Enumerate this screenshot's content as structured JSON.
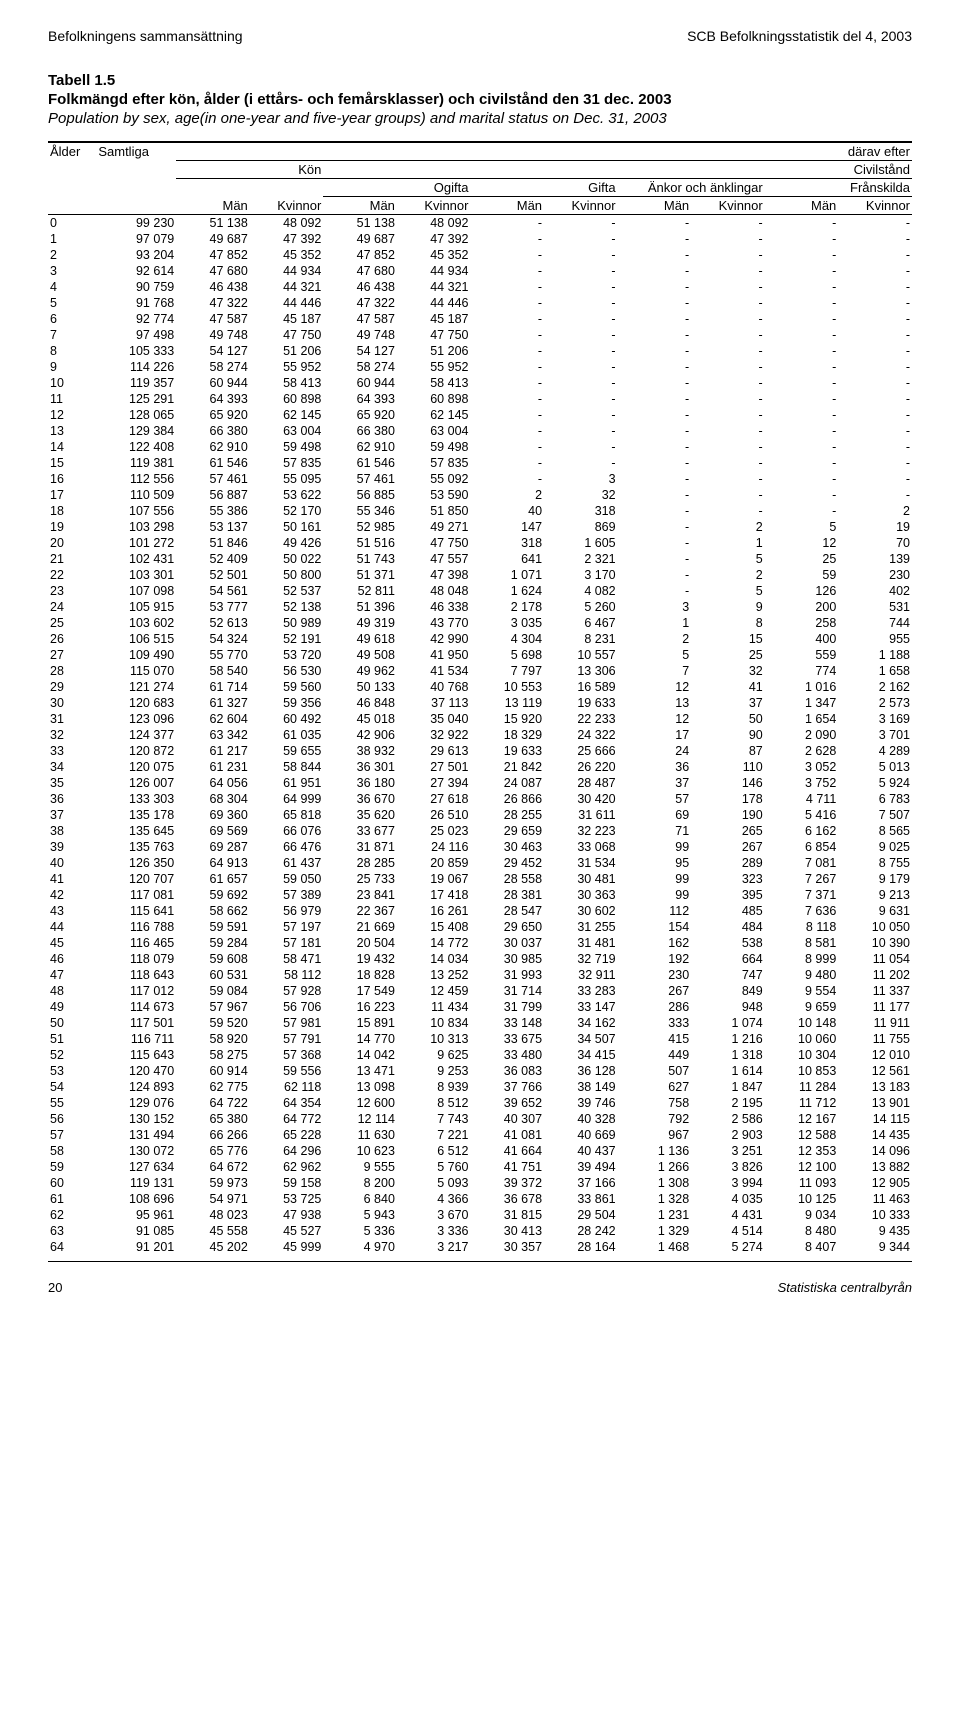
{
  "running": {
    "left": "Befolkningens sammansättning",
    "right": "SCB Befolkningsstatistik del 4, 2003"
  },
  "title": {
    "num": "Tabell 1.5",
    "sv": "Folkmängd efter kön, ålder (i ettårs- och femårsklasser) och civilstånd den 31 dec. 2003",
    "en": "Population by sex, age(in one-year and five-year groups) and marital status on Dec. 31, 2003"
  },
  "head": {
    "alder": "Ålder",
    "samtliga": "Samtliga",
    "darav": "därav efter",
    "kon": "Kön",
    "civil": "Civilstånd",
    "ogifta": "Ogifta",
    "gifta": "Gifta",
    "ankor": "Änkor och änklingar",
    "franskilda": "Frånskilda",
    "man": "Män",
    "kvinnor": "Kvinnor"
  },
  "footer": {
    "page": "20",
    "src": "Statistiska centralbyrån"
  },
  "rows": [
    [
      "0",
      "99 230",
      "51 138",
      "48 092",
      "51 138",
      "48 092",
      "-",
      "-",
      "-",
      "-",
      "-",
      "-"
    ],
    [
      "1",
      "97 079",
      "49 687",
      "47 392",
      "49 687",
      "47 392",
      "-",
      "-",
      "-",
      "-",
      "-",
      "-"
    ],
    [
      "2",
      "93 204",
      "47 852",
      "45 352",
      "47 852",
      "45 352",
      "-",
      "-",
      "-",
      "-",
      "-",
      "-"
    ],
    [
      "3",
      "92 614",
      "47 680",
      "44 934",
      "47 680",
      "44 934",
      "-",
      "-",
      "-",
      "-",
      "-",
      "-"
    ],
    [
      "4",
      "90 759",
      "46 438",
      "44 321",
      "46 438",
      "44 321",
      "-",
      "-",
      "-",
      "-",
      "-",
      "-"
    ],
    [
      "5",
      "91 768",
      "47 322",
      "44 446",
      "47 322",
      "44 446",
      "-",
      "-",
      "-",
      "-",
      "-",
      "-"
    ],
    [
      "6",
      "92 774",
      "47 587",
      "45 187",
      "47 587",
      "45 187",
      "-",
      "-",
      "-",
      "-",
      "-",
      "-"
    ],
    [
      "7",
      "97 498",
      "49 748",
      "47 750",
      "49 748",
      "47 750",
      "-",
      "-",
      "-",
      "-",
      "-",
      "-"
    ],
    [
      "8",
      "105 333",
      "54 127",
      "51 206",
      "54 127",
      "51 206",
      "-",
      "-",
      "-",
      "-",
      "-",
      "-"
    ],
    [
      "9",
      "114 226",
      "58 274",
      "55 952",
      "58 274",
      "55 952",
      "-",
      "-",
      "-",
      "-",
      "-",
      "-"
    ],
    [
      "10",
      "119 357",
      "60 944",
      "58 413",
      "60 944",
      "58 413",
      "-",
      "-",
      "-",
      "-",
      "-",
      "-"
    ],
    [
      "11",
      "125 291",
      "64 393",
      "60 898",
      "64 393",
      "60 898",
      "-",
      "-",
      "-",
      "-",
      "-",
      "-"
    ],
    [
      "12",
      "128 065",
      "65 920",
      "62 145",
      "65 920",
      "62 145",
      "-",
      "-",
      "-",
      "-",
      "-",
      "-"
    ],
    [
      "13",
      "129 384",
      "66 380",
      "63 004",
      "66 380",
      "63 004",
      "-",
      "-",
      "-",
      "-",
      "-",
      "-"
    ],
    [
      "14",
      "122 408",
      "62 910",
      "59 498",
      "62 910",
      "59 498",
      "-",
      "-",
      "-",
      "-",
      "-",
      "-"
    ],
    [
      "15",
      "119 381",
      "61 546",
      "57 835",
      "61 546",
      "57 835",
      "-",
      "-",
      "-",
      "-",
      "-",
      "-"
    ],
    [
      "16",
      "112 556",
      "57 461",
      "55 095",
      "57 461",
      "55 092",
      "-",
      "3",
      "-",
      "-",
      "-",
      "-"
    ],
    [
      "17",
      "110 509",
      "56 887",
      "53 622",
      "56 885",
      "53 590",
      "2",
      "32",
      "-",
      "-",
      "-",
      "-"
    ],
    [
      "18",
      "107 556",
      "55 386",
      "52 170",
      "55 346",
      "51 850",
      "40",
      "318",
      "-",
      "-",
      "-",
      "2"
    ],
    [
      "19",
      "103 298",
      "53 137",
      "50 161",
      "52 985",
      "49 271",
      "147",
      "869",
      "-",
      "2",
      "5",
      "19"
    ],
    [
      "20",
      "101 272",
      "51 846",
      "49 426",
      "51 516",
      "47 750",
      "318",
      "1 605",
      "-",
      "1",
      "12",
      "70"
    ],
    [
      "21",
      "102 431",
      "52 409",
      "50 022",
      "51 743",
      "47 557",
      "641",
      "2 321",
      "-",
      "5",
      "25",
      "139"
    ],
    [
      "22",
      "103 301",
      "52 501",
      "50 800",
      "51 371",
      "47 398",
      "1 071",
      "3 170",
      "-",
      "2",
      "59",
      "230"
    ],
    [
      "23",
      "107 098",
      "54 561",
      "52 537",
      "52 811",
      "48 048",
      "1 624",
      "4 082",
      "-",
      "5",
      "126",
      "402"
    ],
    [
      "24",
      "105 915",
      "53 777",
      "52 138",
      "51 396",
      "46 338",
      "2 178",
      "5 260",
      "3",
      "9",
      "200",
      "531"
    ],
    [
      "25",
      "103 602",
      "52 613",
      "50 989",
      "49 319",
      "43 770",
      "3 035",
      "6 467",
      "1",
      "8",
      "258",
      "744"
    ],
    [
      "26",
      "106 515",
      "54 324",
      "52 191",
      "49 618",
      "42 990",
      "4 304",
      "8 231",
      "2",
      "15",
      "400",
      "955"
    ],
    [
      "27",
      "109 490",
      "55 770",
      "53 720",
      "49 508",
      "41 950",
      "5 698",
      "10 557",
      "5",
      "25",
      "559",
      "1 188"
    ],
    [
      "28",
      "115 070",
      "58 540",
      "56 530",
      "49 962",
      "41 534",
      "7 797",
      "13 306",
      "7",
      "32",
      "774",
      "1 658"
    ],
    [
      "29",
      "121 274",
      "61 714",
      "59 560",
      "50 133",
      "40 768",
      "10 553",
      "16 589",
      "12",
      "41",
      "1 016",
      "2 162"
    ],
    [
      "30",
      "120 683",
      "61 327",
      "59 356",
      "46 848",
      "37 113",
      "13 119",
      "19 633",
      "13",
      "37",
      "1 347",
      "2 573"
    ],
    [
      "31",
      "123 096",
      "62 604",
      "60 492",
      "45 018",
      "35 040",
      "15 920",
      "22 233",
      "12",
      "50",
      "1 654",
      "3 169"
    ],
    [
      "32",
      "124 377",
      "63 342",
      "61 035",
      "42 906",
      "32 922",
      "18 329",
      "24 322",
      "17",
      "90",
      "2 090",
      "3 701"
    ],
    [
      "33",
      "120 872",
      "61 217",
      "59 655",
      "38 932",
      "29 613",
      "19 633",
      "25 666",
      "24",
      "87",
      "2 628",
      "4 289"
    ],
    [
      "34",
      "120 075",
      "61 231",
      "58 844",
      "36 301",
      "27 501",
      "21 842",
      "26 220",
      "36",
      "110",
      "3 052",
      "5 013"
    ],
    [
      "35",
      "126 007",
      "64 056",
      "61 951",
      "36 180",
      "27 394",
      "24 087",
      "28 487",
      "37",
      "146",
      "3 752",
      "5 924"
    ],
    [
      "36",
      "133 303",
      "68 304",
      "64 999",
      "36 670",
      "27 618",
      "26 866",
      "30 420",
      "57",
      "178",
      "4 711",
      "6 783"
    ],
    [
      "37",
      "135 178",
      "69 360",
      "65 818",
      "35 620",
      "26 510",
      "28 255",
      "31 611",
      "69",
      "190",
      "5 416",
      "7 507"
    ],
    [
      "38",
      "135 645",
      "69 569",
      "66 076",
      "33 677",
      "25 023",
      "29 659",
      "32 223",
      "71",
      "265",
      "6 162",
      "8 565"
    ],
    [
      "39",
      "135 763",
      "69 287",
      "66 476",
      "31 871",
      "24 116",
      "30 463",
      "33 068",
      "99",
      "267",
      "6 854",
      "9 025"
    ],
    [
      "40",
      "126 350",
      "64 913",
      "61 437",
      "28 285",
      "20 859",
      "29 452",
      "31 534",
      "95",
      "289",
      "7 081",
      "8 755"
    ],
    [
      "41",
      "120 707",
      "61 657",
      "59 050",
      "25 733",
      "19 067",
      "28 558",
      "30 481",
      "99",
      "323",
      "7 267",
      "9 179"
    ],
    [
      "42",
      "117 081",
      "59 692",
      "57 389",
      "23 841",
      "17 418",
      "28 381",
      "30 363",
      "99",
      "395",
      "7 371",
      "9 213"
    ],
    [
      "43",
      "115 641",
      "58 662",
      "56 979",
      "22 367",
      "16 261",
      "28 547",
      "30 602",
      "112",
      "485",
      "7 636",
      "9 631"
    ],
    [
      "44",
      "116 788",
      "59 591",
      "57 197",
      "21 669",
      "15 408",
      "29 650",
      "31 255",
      "154",
      "484",
      "8 118",
      "10 050"
    ],
    [
      "45",
      "116 465",
      "59 284",
      "57 181",
      "20 504",
      "14 772",
      "30 037",
      "31 481",
      "162",
      "538",
      "8 581",
      "10 390"
    ],
    [
      "46",
      "118 079",
      "59 608",
      "58 471",
      "19 432",
      "14 034",
      "30 985",
      "32 719",
      "192",
      "664",
      "8 999",
      "11 054"
    ],
    [
      "47",
      "118 643",
      "60 531",
      "58 112",
      "18 828",
      "13 252",
      "31 993",
      "32 911",
      "230",
      "747",
      "9 480",
      "11 202"
    ],
    [
      "48",
      "117 012",
      "59 084",
      "57 928",
      "17 549",
      "12 459",
      "31 714",
      "33 283",
      "267",
      "849",
      "9 554",
      "11 337"
    ],
    [
      "49",
      "114 673",
      "57 967",
      "56 706",
      "16 223",
      "11 434",
      "31 799",
      "33 147",
      "286",
      "948",
      "9 659",
      "11 177"
    ],
    [
      "50",
      "117 501",
      "59 520",
      "57 981",
      "15 891",
      "10 834",
      "33 148",
      "34 162",
      "333",
      "1 074",
      "10 148",
      "11 911"
    ],
    [
      "51",
      "116 711",
      "58 920",
      "57 791",
      "14 770",
      "10 313",
      "33 675",
      "34 507",
      "415",
      "1 216",
      "10 060",
      "11 755"
    ],
    [
      "52",
      "115 643",
      "58 275",
      "57 368",
      "14 042",
      "9 625",
      "33 480",
      "34 415",
      "449",
      "1 318",
      "10 304",
      "12 010"
    ],
    [
      "53",
      "120 470",
      "60 914",
      "59 556",
      "13 471",
      "9 253",
      "36 083",
      "36 128",
      "507",
      "1 614",
      "10 853",
      "12 561"
    ],
    [
      "54",
      "124 893",
      "62 775",
      "62 118",
      "13 098",
      "8 939",
      "37 766",
      "38 149",
      "627",
      "1 847",
      "11 284",
      "13 183"
    ],
    [
      "55",
      "129 076",
      "64 722",
      "64 354",
      "12 600",
      "8 512",
      "39 652",
      "39 746",
      "758",
      "2 195",
      "11 712",
      "13 901"
    ],
    [
      "56",
      "130 152",
      "65 380",
      "64 772",
      "12 114",
      "7 743",
      "40 307",
      "40 328",
      "792",
      "2 586",
      "12 167",
      "14 115"
    ],
    [
      "57",
      "131 494",
      "66 266",
      "65 228",
      "11 630",
      "7 221",
      "41 081",
      "40 669",
      "967",
      "2 903",
      "12 588",
      "14 435"
    ],
    [
      "58",
      "130 072",
      "65 776",
      "64 296",
      "10 623",
      "6 512",
      "41 664",
      "40 437",
      "1 136",
      "3 251",
      "12 353",
      "14 096"
    ],
    [
      "59",
      "127 634",
      "64 672",
      "62 962",
      "9 555",
      "5 760",
      "41 751",
      "39 494",
      "1 266",
      "3 826",
      "12 100",
      "13 882"
    ],
    [
      "60",
      "119 131",
      "59 973",
      "59 158",
      "8 200",
      "5 093",
      "39 372",
      "37 166",
      "1 308",
      "3 994",
      "11 093",
      "12 905"
    ],
    [
      "61",
      "108 696",
      "54 971",
      "53 725",
      "6 840",
      "4 366",
      "36 678",
      "33 861",
      "1 328",
      "4 035",
      "10 125",
      "11 463"
    ],
    [
      "62",
      "95 961",
      "48 023",
      "47 938",
      "5 943",
      "3 670",
      "31 815",
      "29 504",
      "1 231",
      "4 431",
      "9 034",
      "10 333"
    ],
    [
      "63",
      "91 085",
      "45 558",
      "45 527",
      "5 336",
      "3 336",
      "30 413",
      "28 242",
      "1 329",
      "4 514",
      "8 480",
      "9 435"
    ],
    [
      "64",
      "91 201",
      "45 202",
      "45 999",
      "4 970",
      "3 217",
      "30 357",
      "28 164",
      "1 468",
      "5 274",
      "8 407",
      "9 344"
    ]
  ]
}
